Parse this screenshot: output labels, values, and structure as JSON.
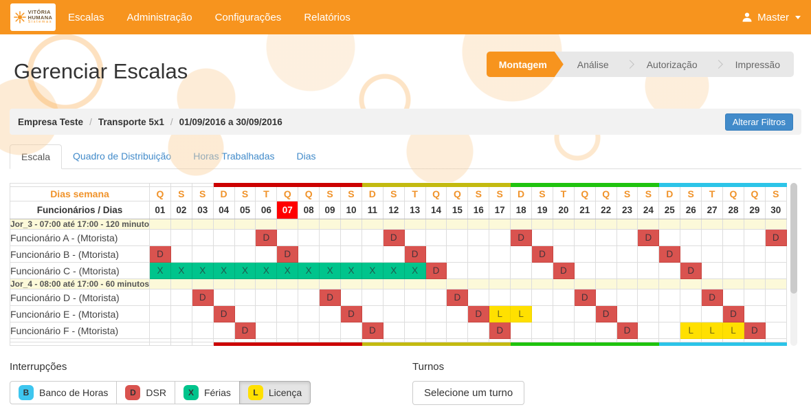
{
  "navbar": {
    "brand": {
      "line1": "VITÓRIA",
      "line2": "HUMANA",
      "line3": "Sistemas"
    },
    "items": [
      {
        "label": "Escalas"
      },
      {
        "label": "Administração"
      },
      {
        "label": "Configurações"
      },
      {
        "label": "Relatórios"
      }
    ],
    "user": {
      "label": "Master"
    }
  },
  "page": {
    "title": "Gerenciar Escalas"
  },
  "wizard": {
    "steps": [
      {
        "label": "Montagem",
        "active": true
      },
      {
        "label": "Análise",
        "active": false
      },
      {
        "label": "Autorização",
        "active": false
      },
      {
        "label": "Impressão",
        "active": false
      }
    ]
  },
  "filter_bar": {
    "crumbs": [
      "Empresa Teste",
      "Transporte 5x1",
      "01/09/2016 a 30/09/2016"
    ],
    "separator": "/",
    "button_label": "Alterar Filtros",
    "button_color": "#428bca"
  },
  "tabs": [
    {
      "label": "Escala",
      "active": true
    },
    {
      "label": "Quadro de Distribuição",
      "active": false
    },
    {
      "label": "Horas Trabalhadas",
      "active": false
    },
    {
      "label": "Dias",
      "active": false
    }
  ],
  "schedule": {
    "weekday_header_label": "Dias semana",
    "employee_header_label": "Funcionários / Dias",
    "highlight_day": "07",
    "highlight_bg": "#ff0000",
    "band_colors": [
      "transparent",
      "#cc0000",
      "#c3ba10",
      "#1fc30e",
      "#2cc4e8"
    ],
    "days": [
      {
        "num": "01",
        "dow": "Q",
        "band": 0
      },
      {
        "num": "02",
        "dow": "S",
        "band": 0
      },
      {
        "num": "03",
        "dow": "S",
        "band": 0
      },
      {
        "num": "04",
        "dow": "D",
        "band": 1
      },
      {
        "num": "05",
        "dow": "S",
        "band": 1
      },
      {
        "num": "06",
        "dow": "T",
        "band": 1
      },
      {
        "num": "07",
        "dow": "Q",
        "band": 1
      },
      {
        "num": "08",
        "dow": "Q",
        "band": 1
      },
      {
        "num": "09",
        "dow": "S",
        "band": 1
      },
      {
        "num": "10",
        "dow": "S",
        "band": 1
      },
      {
        "num": "11",
        "dow": "D",
        "band": 2
      },
      {
        "num": "12",
        "dow": "S",
        "band": 2
      },
      {
        "num": "13",
        "dow": "T",
        "band": 2
      },
      {
        "num": "14",
        "dow": "Q",
        "band": 2
      },
      {
        "num": "15",
        "dow": "Q",
        "band": 2
      },
      {
        "num": "16",
        "dow": "S",
        "band": 2
      },
      {
        "num": "17",
        "dow": "S",
        "band": 2
      },
      {
        "num": "18",
        "dow": "D",
        "band": 3
      },
      {
        "num": "19",
        "dow": "S",
        "band": 3
      },
      {
        "num": "20",
        "dow": "T",
        "band": 3
      },
      {
        "num": "21",
        "dow": "Q",
        "band": 3
      },
      {
        "num": "22",
        "dow": "Q",
        "band": 3
      },
      {
        "num": "23",
        "dow": "S",
        "band": 3
      },
      {
        "num": "24",
        "dow": "S",
        "band": 3
      },
      {
        "num": "25",
        "dow": "D",
        "band": 4
      },
      {
        "num": "26",
        "dow": "S",
        "band": 4
      },
      {
        "num": "27",
        "dow": "T",
        "band": 4
      },
      {
        "num": "28",
        "dow": "Q",
        "band": 4
      },
      {
        "num": "29",
        "dow": "Q",
        "band": 4
      },
      {
        "num": "30",
        "dow": "S",
        "band": 4
      }
    ],
    "marks": {
      "D": {
        "bg": "#d9534f",
        "border": "#c64540",
        "text": "#46333a"
      },
      "X": {
        "bg": "#00c48c",
        "border": "#00ae7b",
        "text": "#1e5a4d"
      },
      "L": {
        "bg": "#ffe000",
        "border": "#eed400",
        "text": "#6f6716"
      }
    },
    "group_row_bg": "#fcf9d9",
    "groups": [
      {
        "label": "Jor_3 - 07:00 até 17:00 - 120 minutos",
        "rows": [
          {
            "name": "Funcionário A - (Mtorista)",
            "marks": {
              "D": [
                6,
                12,
                18,
                24,
                30
              ]
            }
          },
          {
            "name": "Funcionário B - (Mtorista)",
            "marks": {
              "D": [
                1,
                7,
                13,
                19,
                25
              ]
            }
          },
          {
            "name": "Funcionário C - (Mtorista)",
            "marks": {
              "X": [
                1,
                2,
                3,
                4,
                5,
                6,
                7,
                8,
                9,
                10,
                11,
                12,
                13
              ],
              "D": [
                14,
                20,
                26
              ]
            }
          }
        ]
      },
      {
        "label": "Jor_4 - 08:00 até 17:00 - 60 minutos",
        "rows": [
          {
            "name": "Funcionário D - (Mtorista)",
            "marks": {
              "D": [
                3,
                9,
                15,
                21,
                27
              ]
            }
          },
          {
            "name": "Funcionário E - (Mtorista)",
            "marks": {
              "D": [
                4,
                10,
                16,
                22,
                28
              ],
              "L": [
                17,
                18
              ]
            }
          },
          {
            "name": "Funcionário F - (Mtorista)",
            "marks": {
              "D": [
                5,
                11,
                17,
                23,
                29
              ],
              "L": [
                26,
                27,
                28
              ]
            }
          }
        ]
      }
    ]
  },
  "legend": {
    "title": "Interrupções",
    "items": [
      {
        "code": "B",
        "label": "Banco de Horas",
        "color": "#3ec6ef",
        "active": false
      },
      {
        "code": "D",
        "label": "DSR",
        "color": "#d9534f",
        "active": false
      },
      {
        "code": "X",
        "label": "Férias",
        "color": "#00c48c",
        "active": false
      },
      {
        "code": "L",
        "label": "Licença",
        "color": "#ffe000",
        "active": true
      }
    ]
  },
  "turnos": {
    "title": "Turnos",
    "button_label": "Selecione um turno"
  }
}
